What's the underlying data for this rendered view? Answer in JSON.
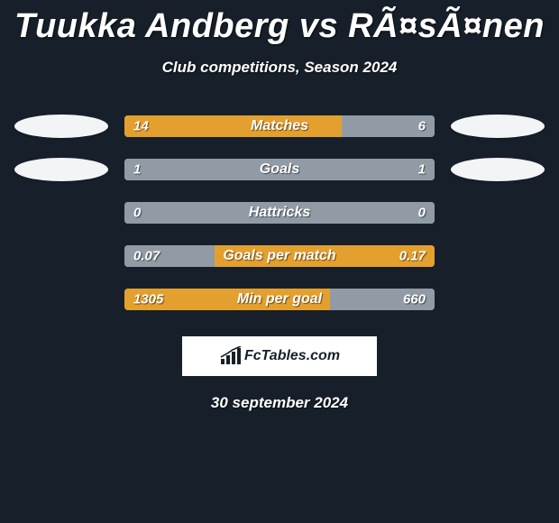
{
  "title": "Tuukka Andberg vs RÃ¤sÃ¤nen",
  "subtitle": "Club competitions, Season 2024",
  "date": "30 september 2024",
  "logo_text": "FcTables.com",
  "colors": {
    "background": "#17202a",
    "ellipse": "#f2f4f6",
    "bar_win": "#e3a02e",
    "bar_lose": "#919ba6",
    "logo_bg": "#ffffff",
    "logo_fg": "#17202a",
    "text": "#ffffff"
  },
  "stats": [
    {
      "label": "Matches",
      "left_value": "14",
      "right_value": "6",
      "left_num": 14,
      "right_num": 6,
      "left_wins": true,
      "show_ellipses": true
    },
    {
      "label": "Goals",
      "left_value": "1",
      "right_value": "1",
      "left_num": 1,
      "right_num": 1,
      "left_wins": false,
      "show_ellipses": true
    },
    {
      "label": "Hattricks",
      "left_value": "0",
      "right_value": "0",
      "left_num": 0,
      "right_num": 0,
      "left_wins": false,
      "show_ellipses": false
    },
    {
      "label": "Goals per match",
      "left_value": "0.07",
      "right_value": "0.17",
      "left_num": 0.07,
      "right_num": 0.17,
      "left_wins": false,
      "show_ellipses": false
    },
    {
      "label": "Min per goal",
      "left_value": "1305",
      "right_value": "660",
      "left_num": 1305,
      "right_num": 660,
      "left_wins": true,
      "show_ellipses": false
    }
  ]
}
